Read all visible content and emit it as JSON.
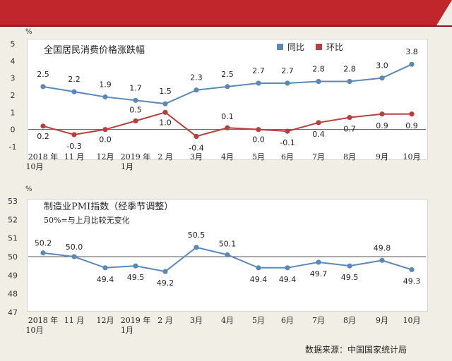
{
  "chart_data": [
    {
      "type": "line",
      "title": "全国居民消费价格涨跌幅",
      "ylabel": "%",
      "ylim": [
        -1,
        5
      ],
      "yticks": [
        "-1",
        "0",
        "1",
        "2",
        "3",
        "4",
        "5"
      ],
      "categories": [
        "2018年10月",
        "11月",
        "12月",
        "2019年1月",
        "2月",
        "3月",
        "4月",
        "5月",
        "6月",
        "7月",
        "8月",
        "9月",
        "10月"
      ],
      "category_labels": [
        {
          "line1": "2018 年",
          "line2": "10月"
        },
        {
          "line1": "11 月",
          "line2": ""
        },
        {
          "line1": "12月",
          "line2": ""
        },
        {
          "line1": "2019 年",
          "line2": "1月"
        },
        {
          "line1": "2 月",
          "line2": ""
        },
        {
          "line1": "3月",
          "line2": ""
        },
        {
          "line1": "4月",
          "line2": ""
        },
        {
          "line1": "5月",
          "line2": ""
        },
        {
          "line1": "6月",
          "line2": ""
        },
        {
          "line1": "7月",
          "line2": ""
        },
        {
          "line1": "8月",
          "line2": ""
        },
        {
          "line1": "9月",
          "line2": ""
        },
        {
          "line1": "10月",
          "line2": ""
        }
      ],
      "series": [
        {
          "name": "同比",
          "color": "#5b88b6",
          "values": [
            2.5,
            2.2,
            1.9,
            1.7,
            1.5,
            2.3,
            2.5,
            2.7,
            2.7,
            2.8,
            2.8,
            3.0,
            3.8
          ],
          "labels": [
            "2.5",
            "2.2",
            "1.9",
            "1.7",
            "1.5",
            "2.3",
            "2.5",
            "2.7",
            "2.7",
            "2.8",
            "2.8",
            "3.0",
            "3.8"
          ]
        },
        {
          "name": "环比",
          "color": "#b6403b",
          "values": [
            0.2,
            -0.3,
            0.0,
            0.5,
            1.0,
            -0.4,
            0.1,
            0.0,
            -0.1,
            0.4,
            0.7,
            0.9,
            0.9
          ],
          "labels": [
            "0.2",
            "-0.3",
            "0.0",
            "0.5",
            "1.0",
            "-0.4",
            "0.1",
            "0.0",
            "-0.1",
            "0.4",
            "0.7",
            "0.9",
            "0.9"
          ]
        }
      ],
      "legend_position": "top-right"
    },
    {
      "type": "line",
      "title": "制造业PMI指数（经季节调整）",
      "note": "50%=与上月比较无变化",
      "ylabel": "%",
      "ylim": [
        47,
        53
      ],
      "yticks": [
        "47",
        "48",
        "49",
        "50",
        "51",
        "52",
        "53"
      ],
      "reference_line": 50,
      "categories": [
        "2018年10月",
        "11月",
        "12月",
        "2019年1月",
        "2月",
        "3月",
        "4月",
        "5月",
        "6月",
        "7月",
        "8月",
        "9月",
        "10月"
      ],
      "category_labels": [
        {
          "line1": "2018 年",
          "line2": "10月"
        },
        {
          "line1": "11 月",
          "line2": ""
        },
        {
          "line1": "12月",
          "line2": ""
        },
        {
          "line1": "2019 年",
          "line2": "1月"
        },
        {
          "line1": "2 月",
          "line2": ""
        },
        {
          "line1": "3月",
          "line2": ""
        },
        {
          "line1": "4月",
          "line2": ""
        },
        {
          "line1": "5月",
          "line2": ""
        },
        {
          "line1": "6月",
          "line2": ""
        },
        {
          "line1": "7月",
          "line2": ""
        },
        {
          "line1": "8月",
          "line2": ""
        },
        {
          "line1": "9月",
          "line2": ""
        },
        {
          "line1": "10月",
          "line2": ""
        }
      ],
      "series": [
        {
          "color": "#5b88b6",
          "values": [
            50.2,
            50.0,
            49.4,
            49.5,
            49.2,
            50.5,
            50.1,
            49.4,
            49.4,
            49.7,
            49.5,
            49.8,
            49.3
          ],
          "labels": [
            "50.2",
            "50.0",
            "49.4",
            "49.5",
            "49.2",
            "50.5",
            "50.1",
            "49.4",
            "49.4",
            "49.7",
            "49.5",
            "49.8",
            "49.3"
          ]
        }
      ]
    }
  ],
  "source": "数据来源：中国国家统计局"
}
